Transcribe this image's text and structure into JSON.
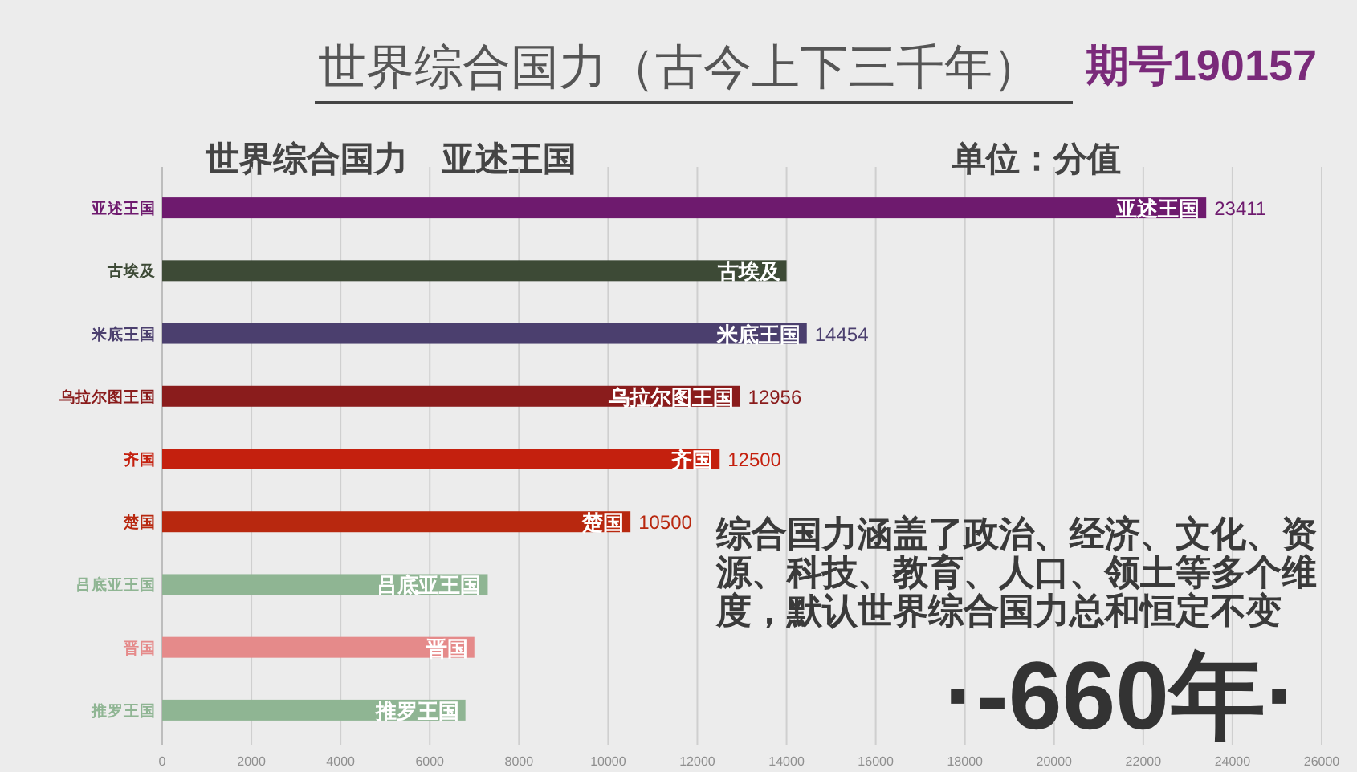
{
  "chart_data": {
    "type": "bar",
    "orientation": "horizontal",
    "title": "世界综合国力（古今上下三千年）",
    "subtitle": "世界综合国力　亚述王国",
    "categories": [
      "亚述王国",
      "古埃及",
      "米底王国",
      "乌拉尔图王国",
      "齐国",
      "楚国",
      "吕底亚王国",
      "晋国",
      "推罗王国"
    ],
    "values": [
      23411,
      14000,
      14454,
      12956,
      12500,
      10500,
      7300,
      7000,
      6800
    ],
    "colors": [
      "#6e1a6e",
      "#3d4a36",
      "#4b3f6e",
      "#8a1c1c",
      "#c4200e",
      "#b8280f",
      "#8fb593",
      "#e58a8a",
      "#8fb593"
    ],
    "value_labels": [
      "23411",
      null,
      "14454",
      "12956",
      "12500",
      "10500",
      null,
      null,
      null
    ],
    "xlim": [
      0,
      26000
    ],
    "xticks": [
      0,
      2000,
      4000,
      6000,
      8000,
      10000,
      12000,
      14000,
      16000,
      18000,
      20000,
      22000,
      24000,
      26000
    ],
    "grid": "x",
    "annotations": [
      "期号190157",
      "单位：分值",
      "综合国力涵盖了政治、经济、文化、资源、科技、教育、人口、领土等多个维度，默认世界综合国力总和恒定不变",
      "·-660年·"
    ]
  }
}
